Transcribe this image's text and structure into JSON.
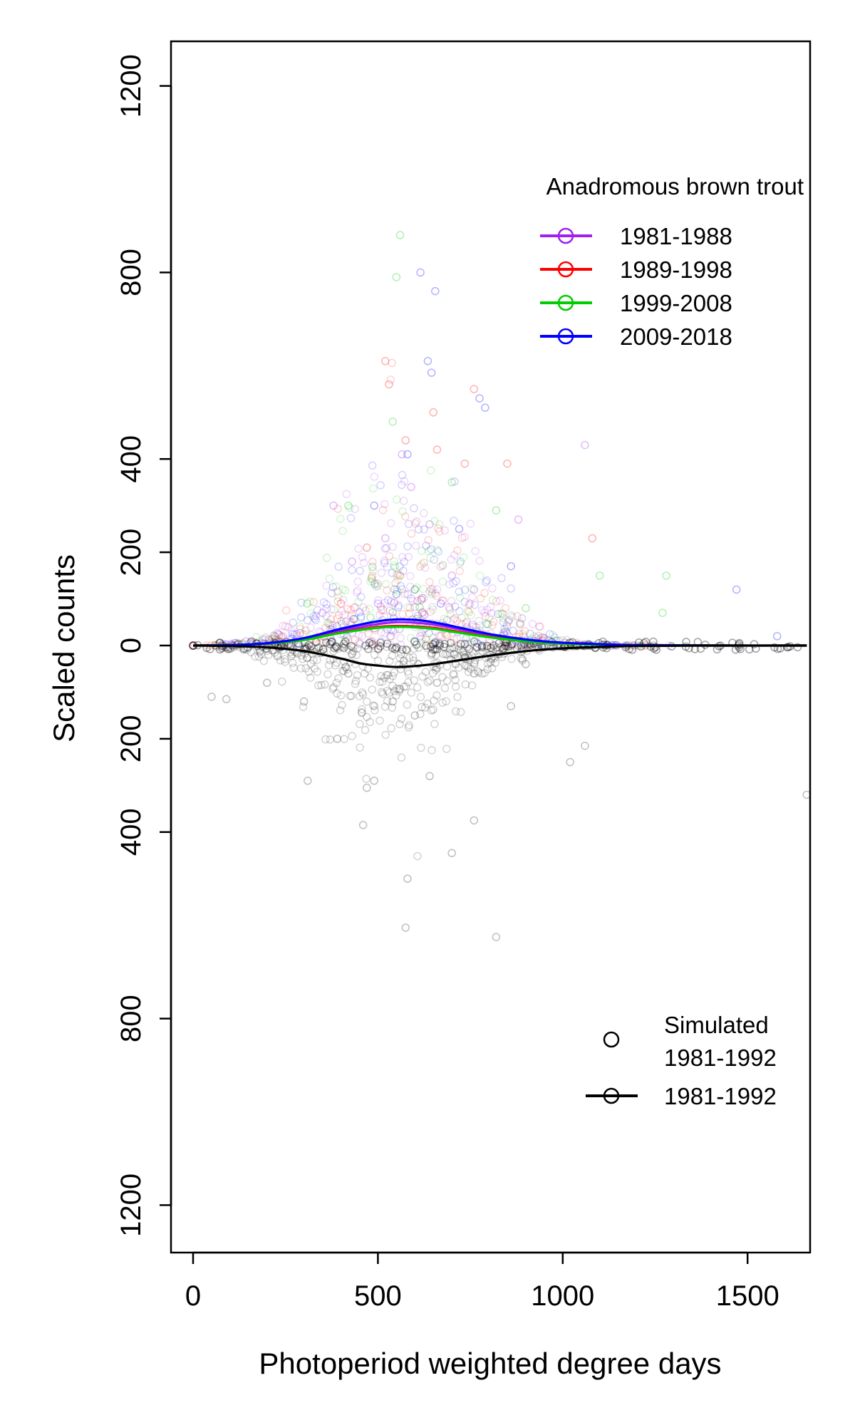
{
  "chart_data": {
    "type": "scatter",
    "xlabel": "Photoperiod weighted degree days",
    "ylabel": "Scaled counts",
    "xlim": [
      -70,
      1660
    ],
    "ylim": [
      -1300,
      1300
    ],
    "x_ticks": [
      0,
      500,
      1000,
      1500
    ],
    "y_ticks": [
      {
        "value": 1200,
        "label": "1200"
      },
      {
        "value": 800,
        "label": "800"
      },
      {
        "value": 400,
        "label": "400"
      },
      {
        "value": 200,
        "label": "200"
      },
      {
        "value": 0,
        "label": "0"
      },
      {
        "value": -200,
        "label": "200"
      },
      {
        "value": -400,
        "label": "400"
      },
      {
        "value": -800,
        "label": "800"
      },
      {
        "value": -1200,
        "label": "1200"
      }
    ],
    "grid": false,
    "observed_legend": {
      "title": "Anadromous brown trout",
      "position": "top-right",
      "entries": [
        {
          "label": "1981-1988",
          "color": "#a020f0"
        },
        {
          "label": "1989-1998",
          "color": "#ff0000"
        },
        {
          "label": "1999-2008",
          "color": "#00cd00"
        },
        {
          "label": "2009-2018",
          "color": "#0000ff"
        }
      ]
    },
    "simulated_legend": {
      "position": "bottom-right",
      "points_label": [
        "Simulated",
        "1981-1992"
      ],
      "line_label": "1981-1992",
      "color": "#000000"
    },
    "series": [
      {
        "name": "1981-1988",
        "kind": "smooth",
        "color": "#a020f0",
        "x": [
          0,
          100,
          200,
          300,
          400,
          500,
          550,
          600,
          650,
          700,
          800,
          900,
          1000,
          1100,
          1200,
          1400,
          1660
        ],
        "y": [
          0,
          1,
          4,
          14,
          32,
          46,
          50,
          49,
          45,
          38,
          22,
          12,
          6,
          3,
          1,
          0,
          0
        ]
      },
      {
        "name": "1989-1998",
        "kind": "smooth",
        "color": "#ff0000",
        "x": [
          0,
          100,
          200,
          300,
          400,
          500,
          550,
          600,
          650,
          700,
          800,
          900,
          1000,
          1100,
          1200,
          1400,
          1660
        ],
        "y": [
          0,
          1,
          4,
          12,
          28,
          40,
          42,
          41,
          38,
          32,
          19,
          10,
          5,
          2,
          1,
          0,
          0
        ]
      },
      {
        "name": "1999-2008",
        "kind": "smooth",
        "color": "#00cd00",
        "x": [
          0,
          100,
          200,
          300,
          400,
          500,
          550,
          600,
          650,
          700,
          800,
          900,
          1000,
          1100,
          1200,
          1400,
          1660
        ],
        "y": [
          0,
          1,
          4,
          12,
          27,
          38,
          40,
          39,
          36,
          30,
          18,
          9,
          4,
          2,
          1,
          0,
          0
        ]
      },
      {
        "name": "2009-2018",
        "kind": "smooth",
        "color": "#0000ff",
        "x": [
          0,
          100,
          200,
          300,
          400,
          500,
          550,
          600,
          650,
          700,
          800,
          900,
          1000,
          1100,
          1200,
          1400,
          1660
        ],
        "y": [
          0,
          1,
          5,
          16,
          36,
          52,
          56,
          55,
          50,
          42,
          25,
          13,
          6,
          3,
          1,
          0,
          0
        ]
      },
      {
        "name": "1981-1992",
        "kind": "smooth",
        "color": "#000000",
        "x": [
          0,
          100,
          200,
          300,
          400,
          450,
          500,
          550,
          600,
          650,
          700,
          800,
          900,
          1000,
          1100,
          1200,
          1400,
          1660
        ],
        "y": [
          0,
          -1,
          -4,
          -12,
          -28,
          -38,
          -43,
          -46,
          -44,
          -40,
          -34,
          -22,
          -12,
          -6,
          -3,
          -1,
          0,
          0
        ]
      }
    ],
    "scatter_points": [
      {
        "series": "1981-1988",
        "color": "#a020f0",
        "points": [
          [
            565,
            410
          ],
          [
            590,
            340
          ],
          [
            380,
            300
          ],
          [
            520,
            230
          ],
          [
            640,
            260
          ],
          [
            880,
            270
          ],
          [
            430,
            180
          ],
          [
            700,
            150
          ],
          [
            1060,
            430
          ],
          [
            760,
            120
          ],
          [
            600,
            120
          ],
          [
            500,
            90
          ],
          [
            350,
            70
          ]
        ]
      },
      {
        "series": "1989-1998",
        "color": "#ff0000",
        "points": [
          [
            520,
            610
          ],
          [
            530,
            560
          ],
          [
            575,
            440
          ],
          [
            760,
            550
          ],
          [
            650,
            500
          ],
          [
            735,
            390
          ],
          [
            850,
            390
          ],
          [
            470,
            210
          ],
          [
            660,
            420
          ],
          [
            1080,
            230
          ],
          [
            560,
            150
          ],
          [
            400,
            90
          ],
          [
            620,
            70
          ]
        ]
      },
      {
        "series": "1999-2008",
        "color": "#00cd00",
        "points": [
          [
            560,
            880
          ],
          [
            550,
            790
          ],
          [
            540,
            480
          ],
          [
            700,
            350
          ],
          [
            820,
            290
          ],
          [
            420,
            300
          ],
          [
            1100,
            150
          ],
          [
            1280,
            150
          ],
          [
            1270,
            70
          ],
          [
            600,
            120
          ],
          [
            900,
            80
          ],
          [
            480,
            60
          ]
        ]
      },
      {
        "series": "2009-2018",
        "color": "#0000ff",
        "points": [
          [
            615,
            800
          ],
          [
            655,
            760
          ],
          [
            635,
            610
          ],
          [
            645,
            585
          ],
          [
            775,
            530
          ],
          [
            790,
            510
          ],
          [
            580,
            410
          ],
          [
            490,
            300
          ],
          [
            720,
            250
          ],
          [
            860,
            170
          ],
          [
            1470,
            120
          ],
          [
            1580,
            20
          ],
          [
            550,
            110
          ],
          [
            670,
            90
          ]
        ]
      }
    ],
    "simulated_points": {
      "series": "1981-1992",
      "color": "#000000",
      "points": [
        [
          580,
          -500
        ],
        [
          575,
          -605
        ],
        [
          700,
          -445
        ],
        [
          820,
          -625
        ],
        [
          760,
          -375
        ],
        [
          460,
          -385
        ],
        [
          470,
          -305
        ],
        [
          490,
          -290
        ],
        [
          310,
          -290
        ],
        [
          1020,
          -250
        ],
        [
          1060,
          -215
        ],
        [
          1660,
          -320
        ],
        [
          390,
          -200
        ],
        [
          640,
          -280
        ],
        [
          600,
          -150
        ],
        [
          540,
          -120
        ],
        [
          300,
          -120
        ],
        [
          200,
          -80
        ],
        [
          860,
          -130
        ],
        [
          660,
          -80
        ],
        [
          760,
          -60
        ],
        [
          900,
          -40
        ],
        [
          420,
          -60
        ],
        [
          50,
          -110
        ],
        [
          90,
          -115
        ]
      ]
    }
  }
}
